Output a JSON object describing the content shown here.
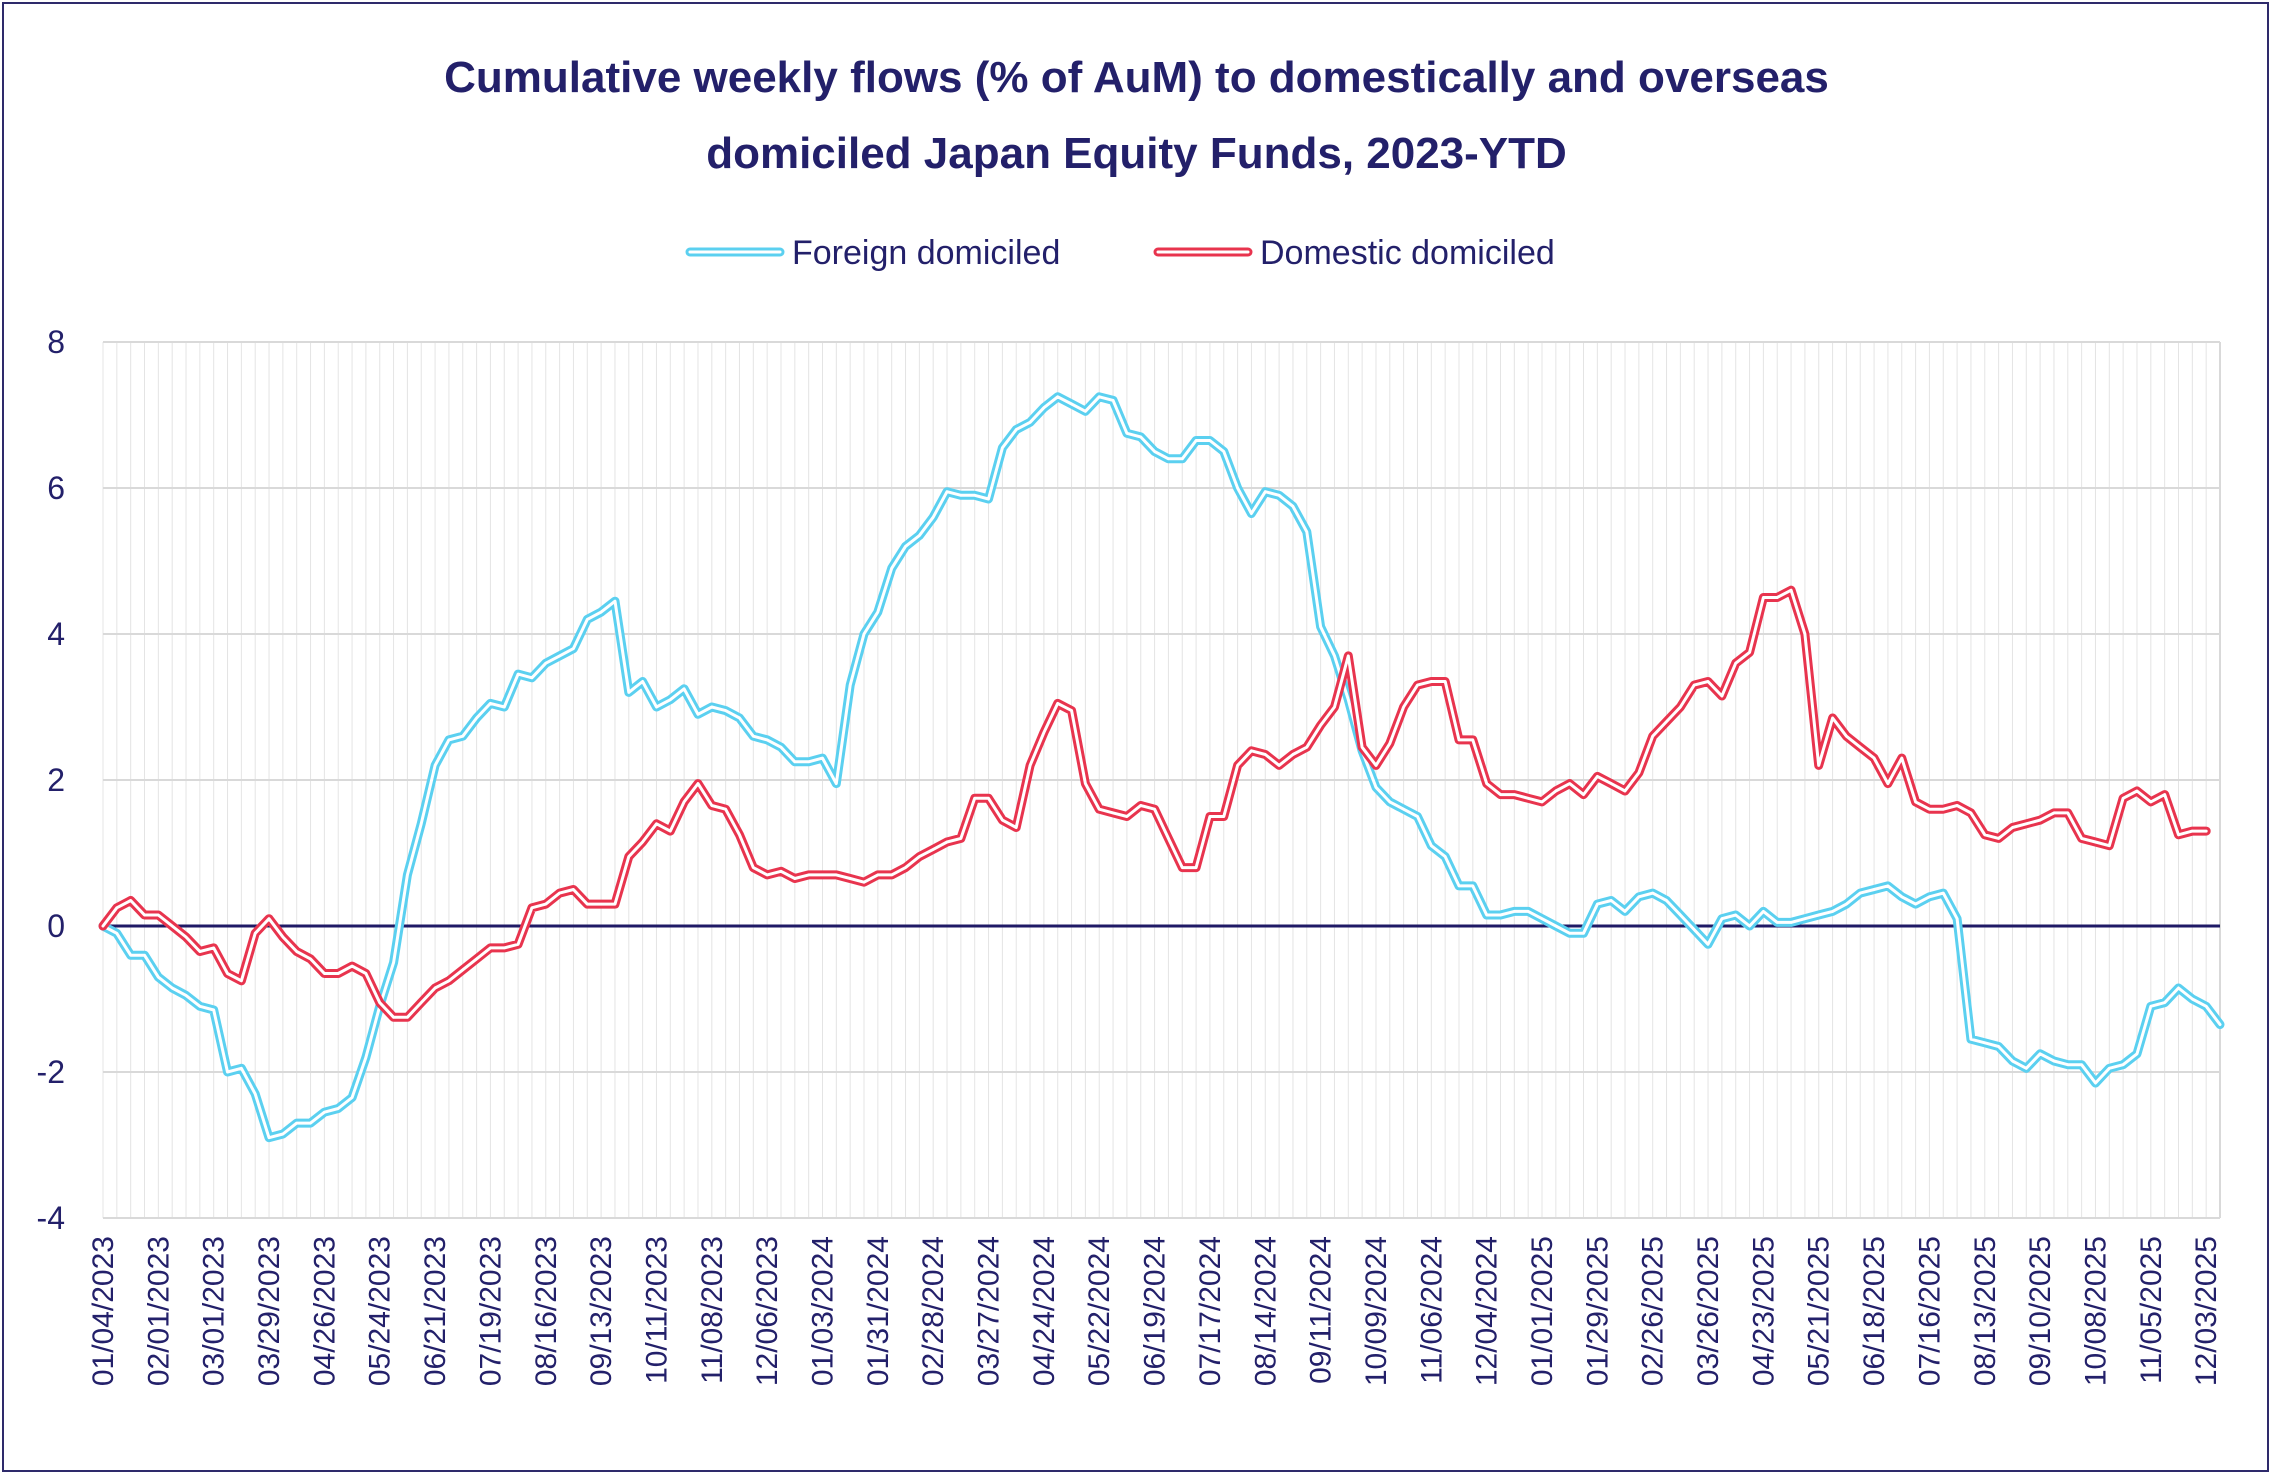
{
  "chart_data": {
    "type": "line",
    "title_line1": "Cumulative weekly flows (% of AuM) to domestically and overseas",
    "title_line2": "domiciled Japan Equity Funds, 2023-YTD",
    "xlabel": "",
    "ylabel": "",
    "ylim": [
      -4,
      8
    ],
    "yticks": [
      "8",
      "6",
      "4",
      "2",
      "0",
      "-2",
      "-4"
    ],
    "grid": true,
    "legend": "top-center",
    "x_labels": [
      "01/04/2023",
      "02/01/2023",
      "03/01/2023",
      "03/29/2023",
      "04/26/2023",
      "05/24/2023",
      "06/21/2023",
      "07/19/2023",
      "08/16/2023",
      "09/13/2023",
      "10/11/2023",
      "11/08/2023",
      "12/06/2023",
      "01/03/2024",
      "01/31/2024",
      "02/28/2024",
      "03/27/2024",
      "04/24/2024",
      "05/22/2024",
      "06/19/2024",
      "07/17/2024",
      "08/14/2024",
      "09/11/2024",
      "10/09/2024",
      "11/06/2024",
      "12/04/2024",
      "01/01/2025",
      "01/29/2025",
      "02/26/2025",
      "03/26/2025",
      "04/23/2025",
      "05/21/2025",
      "06/18/2025",
      "07/16/2025",
      "08/13/2025",
      "09/10/2025",
      "10/08/2025",
      "11/05/2025",
      "12/03/2025"
    ],
    "series": [
      {
        "name": "Foreign domiciled",
        "color": "#5bd0f0",
        "values": [
          0,
          -0.1,
          -0.4,
          -0.4,
          -0.7,
          -0.85,
          -0.95,
          -1.1,
          -1.15,
          -2,
          -1.95,
          -2.3,
          -2.9,
          -2.85,
          -2.7,
          -2.7,
          -2.55,
          -2.5,
          -2.35,
          -1.8,
          -1.1,
          -0.5,
          0.7,
          1.4,
          2.2,
          2.55,
          2.6,
          2.85,
          3.05,
          3,
          3.45,
          3.4,
          3.6,
          3.7,
          3.8,
          4.2,
          4.3,
          4.45,
          3.2,
          3.35,
          3,
          3.1,
          3.25,
          2.9,
          3,
          2.95,
          2.85,
          2.6,
          2.55,
          2.45,
          2.25,
          2.25,
          2.3,
          1.95,
          3.3,
          4,
          4.3,
          4.9,
          5.2,
          5.35,
          5.6,
          5.95,
          5.9,
          5.9,
          5.85,
          6.55,
          6.8,
          6.9,
          7.1,
          7.25,
          7.15,
          7.05,
          7.25,
          7.2,
          6.75,
          6.7,
          6.5,
          6.4,
          6.4,
          6.65,
          6.65,
          6.5,
          6,
          5.65,
          5.95,
          5.9,
          5.75,
          5.4,
          4.1,
          3.7,
          3.1,
          2.4,
          1.9,
          1.7,
          1.6,
          1.5,
          1.1,
          0.95,
          0.55,
          0.55,
          0.15,
          0.15,
          0.2,
          0.2,
          0.1,
          0,
          -0.1,
          -0.1,
          0.3,
          0.35,
          0.2,
          0.4,
          0.45,
          0.35,
          0.15,
          -0.05,
          -0.25,
          0.1,
          0.15,
          0,
          0.2,
          0.05,
          0.05,
          0.1,
          0.15,
          0.2,
          0.3,
          0.45,
          0.5,
          0.55,
          0.4,
          0.3,
          0.4,
          0.45,
          0.1,
          -1.55,
          -1.6,
          -1.65,
          -1.85,
          -1.95,
          -1.75,
          -1.85,
          -1.9,
          -1.9,
          -2.15,
          -1.95,
          -1.9,
          -1.75,
          -1.1,
          -1.05,
          -0.85,
          -1,
          -1.1,
          -1.35
        ]
      },
      {
        "name": "Domestic domiciled",
        "color": "#e8344e",
        "values": [
          0,
          0.25,
          0.35,
          0.15,
          0.15,
          0,
          -0.15,
          -0.35,
          -0.3,
          -0.65,
          -0.75,
          -0.1,
          0.1,
          -0.15,
          -0.35,
          -0.45,
          -0.65,
          -0.65,
          -0.55,
          -0.65,
          -1.05,
          -1.25,
          -1.25,
          -1.05,
          -0.85,
          -0.75,
          -0.6,
          -0.45,
          -0.3,
          -0.3,
          -0.25,
          0.25,
          0.3,
          0.45,
          0.5,
          0.3,
          0.3,
          0.3,
          0.95,
          1.15,
          1.4,
          1.3,
          1.7,
          1.95,
          1.65,
          1.6,
          1.25,
          0.8,
          0.7,
          0.75,
          0.65,
          0.7,
          0.7,
          0.7,
          0.65,
          0.6,
          0.7,
          0.7,
          0.8,
          0.95,
          1.05,
          1.15,
          1.2,
          1.75,
          1.75,
          1.45,
          1.35,
          2.2,
          2.65,
          3.05,
          2.95,
          1.95,
          1.6,
          1.55,
          1.5,
          1.65,
          1.6,
          1.2,
          0.8,
          0.8,
          1.5,
          1.5,
          2.2,
          2.4,
          2.35,
          2.2,
          2.35,
          2.45,
          2.75,
          3,
          3.7,
          2.45,
          2.2,
          2.5,
          3,
          3.3,
          3.35,
          3.35,
          2.55,
          2.55,
          1.95,
          1.8,
          1.8,
          1.75,
          1.7,
          1.85,
          1.95,
          1.8,
          2.05,
          1.95,
          1.85,
          2.1,
          2.6,
          2.8,
          3,
          3.3,
          3.35,
          3.15,
          3.6,
          3.75,
          4.5,
          4.5,
          4.6,
          4,
          2.2,
          2.85,
          2.6,
          2.45,
          2.3,
          1.95,
          2.3,
          1.7,
          1.6,
          1.6,
          1.65,
          1.55,
          1.25,
          1.2,
          1.35,
          1.4,
          1.45,
          1.55,
          1.55,
          1.2,
          1.15,
          1.1,
          1.75,
          1.85,
          1.7,
          1.8,
          1.25,
          1.3,
          1.3
        ]
      }
    ]
  }
}
